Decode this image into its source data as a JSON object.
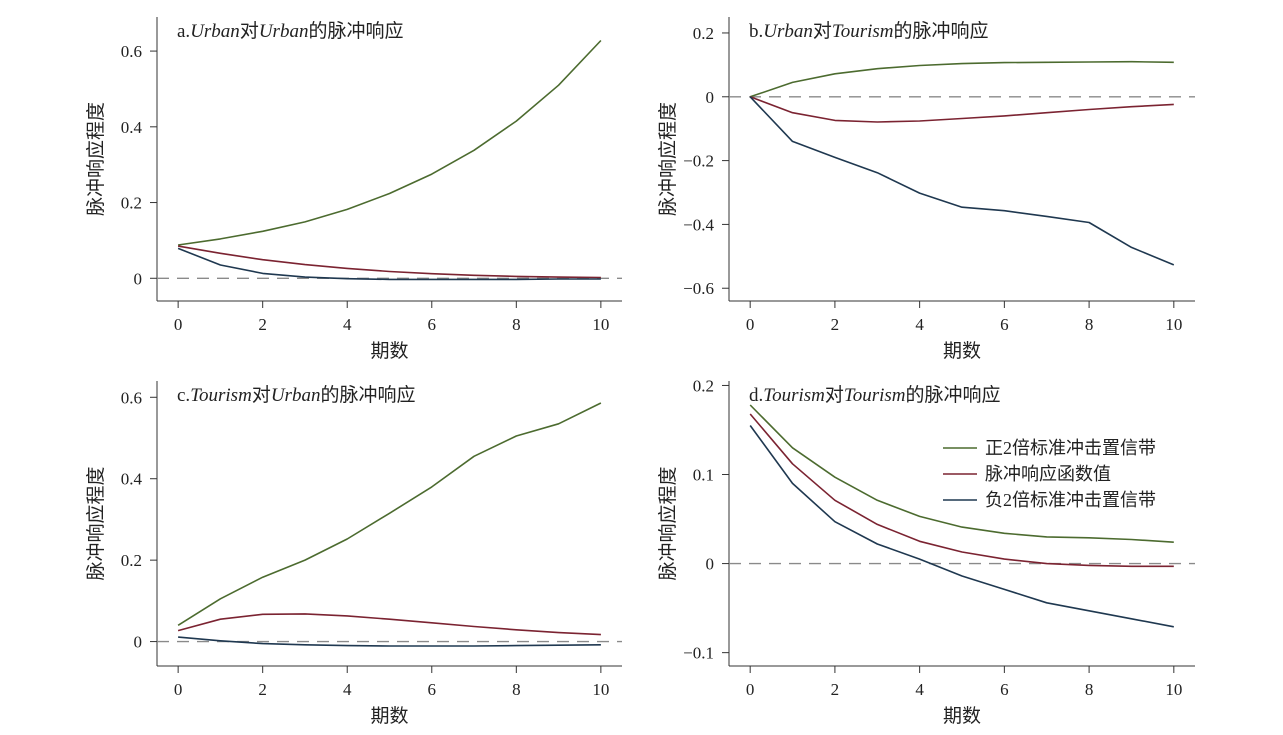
{
  "colors": {
    "upper": "#4c6b2f",
    "irf": "#7b2331",
    "lower": "#1f3850"
  },
  "legend": {
    "entries": [
      "正2倍标准冲击置信带",
      "脉冲响应函数值",
      "负2倍标准冲击置信带"
    ]
  },
  "chart_data": [
    {
      "type": "line",
      "title": "a.Urban对Urban的脉冲响应",
      "title_parts": [
        {
          "text": "a.",
          "italic": false
        },
        {
          "text": "Urban",
          "italic": true
        },
        {
          "text": "对",
          "italic": false
        },
        {
          "text": "Urban",
          "italic": true
        },
        {
          "text": "的脉冲响应",
          "italic": false
        }
      ],
      "xlabel": "期数",
      "ylabel": "脉冲响应程度",
      "xlim": [
        -0.5,
        10.5
      ],
      "ylim": [
        -0.06,
        0.69
      ],
      "xticks": [
        0,
        2,
        4,
        6,
        8,
        10
      ],
      "xtick_labels": [
        "0",
        "2",
        "4",
        "6",
        "8",
        "10"
      ],
      "yticks": [
        0,
        0.2,
        0.4,
        0.6
      ],
      "ytick_labels": [
        "0",
        "0.2",
        "0.4",
        "0.6"
      ],
      "x": [
        0,
        1,
        2,
        3,
        4,
        5,
        6,
        7,
        8,
        9,
        10
      ],
      "series": [
        {
          "key": "upper",
          "values": [
            0.088,
            0.104,
            0.124,
            0.149,
            0.182,
            0.224,
            0.275,
            0.338,
            0.415,
            0.51,
            0.628
          ]
        },
        {
          "key": "irf",
          "values": [
            0.085,
            0.066,
            0.049,
            0.036,
            0.026,
            0.018,
            0.012,
            0.008,
            0.005,
            0.003,
            0.002
          ]
        },
        {
          "key": "lower",
          "values": [
            0.079,
            0.035,
            0.013,
            0.003,
            -0.001,
            -0.003,
            -0.003,
            -0.003,
            -0.003,
            -0.002,
            -0.002
          ]
        }
      ],
      "legend": false
    },
    {
      "type": "line",
      "title": "b.Urban对Tourism的脉冲响应",
      "title_parts": [
        {
          "text": "b.",
          "italic": false
        },
        {
          "text": "Urban",
          "italic": true
        },
        {
          "text": "对",
          "italic": false
        },
        {
          "text": "Tourism",
          "italic": true
        },
        {
          "text": "的脉冲响应",
          "italic": false
        }
      ],
      "xlabel": "期数",
      "ylabel": "脉冲响应程度",
      "xlim": [
        -0.5,
        10.5
      ],
      "ylim": [
        -0.64,
        0.25
      ],
      "xticks": [
        0,
        2,
        4,
        6,
        8,
        10
      ],
      "xtick_labels": [
        "0",
        "2",
        "4",
        "6",
        "8",
        "10"
      ],
      "yticks": [
        0.2,
        0,
        -0.2,
        -0.4,
        -0.6
      ],
      "ytick_labels": [
        "0.2",
        "0",
        "−0.2",
        "−0.4",
        "−0.6"
      ],
      "x": [
        0,
        1,
        2,
        3,
        4,
        5,
        6,
        7,
        8,
        9,
        10
      ],
      "series": [
        {
          "key": "upper",
          "values": [
            0.0,
            0.045,
            0.072,
            0.088,
            0.098,
            0.104,
            0.107,
            0.108,
            0.109,
            0.11,
            0.108
          ]
        },
        {
          "key": "irf",
          "values": [
            0.0,
            -0.05,
            -0.074,
            -0.079,
            -0.076,
            -0.068,
            -0.06,
            -0.05,
            -0.04,
            -0.031,
            -0.024
          ]
        },
        {
          "key": "lower",
          "values": [
            0.0,
            -0.14,
            -0.19,
            -0.238,
            -0.302,
            -0.346,
            -0.357,
            -0.375,
            -0.394,
            -0.472,
            -0.527
          ]
        }
      ],
      "legend": false
    },
    {
      "type": "line",
      "title": "c.Tourism对Urban的脉冲响应",
      "title_parts": [
        {
          "text": "c.",
          "italic": false
        },
        {
          "text": "Tourism",
          "italic": true
        },
        {
          "text": "对",
          "italic": false
        },
        {
          "text": "Urban",
          "italic": true
        },
        {
          "text": "的脉冲响应",
          "italic": false
        }
      ],
      "xlabel": "期数",
      "ylabel": "脉冲响应程度",
      "xlim": [
        -0.5,
        10.5
      ],
      "ylim": [
        -0.06,
        0.64
      ],
      "xticks": [
        0,
        2,
        4,
        6,
        8,
        10
      ],
      "xtick_labels": [
        "0",
        "2",
        "4",
        "6",
        "8",
        "10"
      ],
      "yticks": [
        0,
        0.2,
        0.4,
        0.6
      ],
      "ytick_labels": [
        "0",
        "0.2",
        "0.4",
        "0.6"
      ],
      "x": [
        0,
        1,
        2,
        3,
        4,
        5,
        6,
        7,
        8,
        9,
        10
      ],
      "series": [
        {
          "key": "upper",
          "values": [
            0.04,
            0.105,
            0.158,
            0.2,
            0.252,
            0.315,
            0.38,
            0.455,
            0.505,
            0.535,
            0.586
          ]
        },
        {
          "key": "irf",
          "values": [
            0.027,
            0.055,
            0.067,
            0.068,
            0.063,
            0.055,
            0.046,
            0.037,
            0.029,
            0.022,
            0.017
          ]
        },
        {
          "key": "lower",
          "values": [
            0.011,
            0.002,
            -0.005,
            -0.008,
            -0.01,
            -0.011,
            -0.011,
            -0.011,
            -0.01,
            -0.009,
            -0.008
          ]
        }
      ],
      "legend": false
    },
    {
      "type": "line",
      "title": "d.Tourism对Tourism的脉冲响应",
      "title_parts": [
        {
          "text": "d.",
          "italic": false
        },
        {
          "text": "Tourism",
          "italic": true
        },
        {
          "text": "对",
          "italic": false
        },
        {
          "text": "Tourism",
          "italic": true
        },
        {
          "text": "的脉冲响应",
          "italic": false
        }
      ],
      "xlabel": "期数",
      "ylabel": "脉冲响应程度",
      "xlim": [
        -0.5,
        10.5
      ],
      "ylim": [
        -0.115,
        0.205
      ],
      "xticks": [
        0,
        2,
        4,
        6,
        8,
        10
      ],
      "xtick_labels": [
        "0",
        "2",
        "4",
        "6",
        "8",
        "10"
      ],
      "yticks": [
        0.2,
        0.1,
        0,
        -0.1
      ],
      "ytick_labels": [
        "0.2",
        "0.1",
        "0",
        "−0.1"
      ],
      "x": [
        0,
        1,
        2,
        3,
        4,
        5,
        6,
        7,
        8,
        9,
        10
      ],
      "series": [
        {
          "key": "upper",
          "values": [
            0.178,
            0.13,
            0.097,
            0.071,
            0.053,
            0.041,
            0.034,
            0.03,
            0.029,
            0.027,
            0.024
          ]
        },
        {
          "key": "irf",
          "values": [
            0.168,
            0.112,
            0.071,
            0.044,
            0.025,
            0.013,
            0.005,
            0.0,
            -0.002,
            -0.003,
            -0.003
          ]
        },
        {
          "key": "lower",
          "values": [
            0.155,
            0.09,
            0.047,
            0.022,
            0.005,
            -0.014,
            -0.029,
            -0.044,
            -0.053,
            -0.062,
            -0.071
          ]
        }
      ],
      "legend": true,
      "legend_position": "top-right"
    }
  ]
}
